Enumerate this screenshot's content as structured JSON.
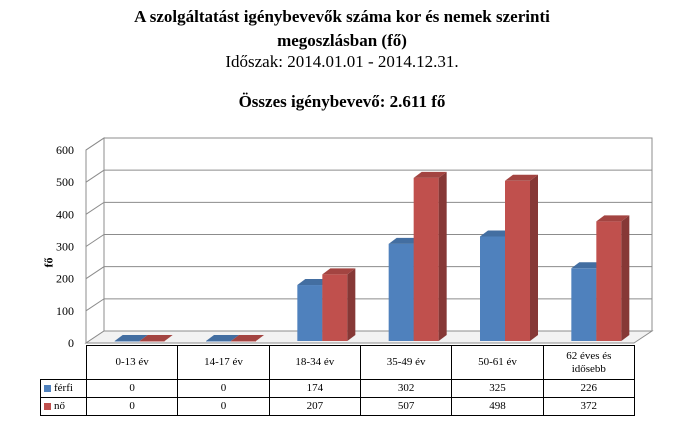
{
  "title_line1": "A szolgáltatást igénybevevők száma kor és nemek szerinti",
  "title_line2": "megoszlásban (fő)",
  "period": "Időszak: 2014.01.01 - 2014.12.31.",
  "total": "Összes igénybevevő: 2.611 fő",
  "colors": {
    "ferfi": "#4f81bd",
    "no": "#c0504d"
  },
  "chart_data": {
    "type": "bar",
    "ylabel": "fő",
    "ylim": [
      0,
      600
    ],
    "yticks": [
      "0",
      "100",
      "200",
      "300",
      "400",
      "500",
      "600"
    ],
    "categories": [
      "0-13 év",
      "14-17 év",
      "18-34 év",
      "35-49 év",
      "50-61 év",
      "62 éves és idősebb"
    ],
    "category_lines": [
      [
        "0-13 év"
      ],
      [
        "14-17 év"
      ],
      [
        "18-34 év"
      ],
      [
        "35-49 év"
      ],
      [
        "50-61 év"
      ],
      [
        "62 éves és",
        "idősebb"
      ]
    ],
    "series": [
      {
        "name": "férfi",
        "values": [
          0,
          0,
          174,
          302,
          325,
          226
        ]
      },
      {
        "name": "nő",
        "values": [
          0,
          0,
          207,
          507,
          498,
          372
        ]
      }
    ],
    "grid": true,
    "legend": "table-bottom"
  }
}
